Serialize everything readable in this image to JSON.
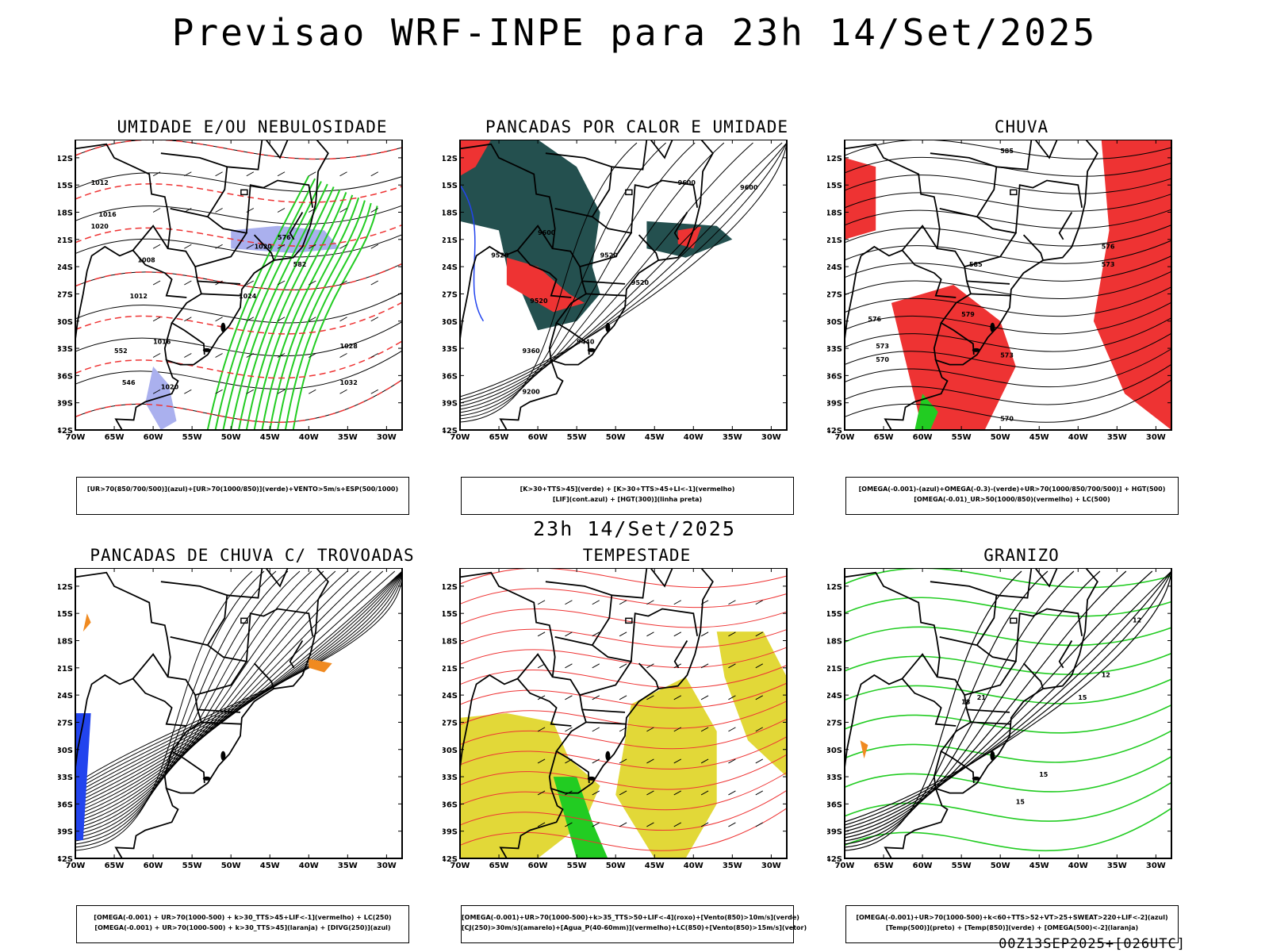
{
  "header": {
    "main_title": "Previsao WRF-INPE  para 23h 14/Set/2025",
    "mid_title": "23h 14/Set/2025",
    "footer": "00Z13SEP2025+[026UTC]"
  },
  "axes": {
    "lat_labels": [
      "12S",
      "15S",
      "18S",
      "21S",
      "24S",
      "27S",
      "30S",
      "33S",
      "36S",
      "39S",
      "42S"
    ],
    "lon_labels": [
      "70W",
      "65W",
      "60W",
      "55W",
      "50W",
      "45W",
      "40W",
      "35W",
      "30W"
    ]
  },
  "colors": {
    "green": "#22cc22",
    "red": "#ee3333",
    "blue": "#2244ee",
    "lavender": "#aab0ee",
    "darkteal": "#24504f",
    "yellow": "#e2d838",
    "orange": "#f08a20",
    "black": "#000000"
  },
  "panels": [
    {
      "id": "umidade",
      "title": "UMIDADE E/OU NEBULOSIDADE",
      "legend": [
        "[UR>70(850/700/500)](azul)+[UR>70(1000/850)](verde)+VENTO>5m/s+ESP(500/1000)"
      ],
      "contour_labels": [
        "1012",
        "1020",
        "1016",
        "1008",
        "1012",
        "1016",
        "1024",
        "1020",
        "1028",
        "1032",
        "1020",
        "576",
        "552",
        "546",
        "582"
      ]
    },
    {
      "id": "pancadas_calor",
      "title": "PANCADAS POR CALOR E UMIDADE",
      "legend": [
        "[K>30+TTS>45](verde) + [K>30+TTS>45+LI<-1](vermelho)",
        "[LIF](cont.azul) + [HGT(300)](linha preta)"
      ],
      "contour_labels": [
        "9600",
        "9600",
        "9520",
        "9600",
        "9520",
        "9520",
        "9520",
        "9440",
        "9360",
        "9200"
      ]
    },
    {
      "id": "chuva",
      "title": "CHUVA",
      "legend": [
        "[OMEGA(-0.001)-(azul)+OMEGA(-0.3)-(verde)+UR>70(1000/850/700/500)] + HGT(500)",
        "[OMEGA(-0.01)_UR>50(1000/850)(vermelho) + LC(500)"
      ],
      "contour_labels": [
        "585",
        "585",
        "576",
        "573",
        "579",
        "576",
        "573",
        "570",
        "573",
        "570"
      ]
    },
    {
      "id": "pancadas_trovoadas",
      "title": "PANCADAS DE CHUVA C/ TROVOADAS",
      "legend": [
        "[OMEGA(-0.001) + UR>70(1000-500) + k>30_TTS>45+LIF<-1](vermelho) + LC(250)",
        "[OMEGA(-0.001) + UR>70(1000-500) + k>30_TTS>45](laranja) + [DIVG(250)](azul)"
      ]
    },
    {
      "id": "tempestade",
      "title": "TEMPESTADE",
      "legend": [
        "[OMEGA(-0.001)+UR>70(1000-500)+k>35_TTS>50+LIF<-4](roxo)+[Vento(850)>10m/s](verde)",
        "[CJ(250)>30m/s](amarelo)+[Agua_P(40-60mm)](vermelho)+LC(850)+[Vento(850)>15m/s](vetor)"
      ]
    },
    {
      "id": "granizo",
      "title": "GRANIZO",
      "legend": [
        "[OMEGA(-0.001)+UR>70(1000-500)+k<60+TTS>52+VT>25+SWEAT>220+LIF<-2](azul)",
        "[Temp(500)](preto) + [Temp(850)](verde) + [OMEGA(500)<-2](laranja)"
      ],
      "contour_labels": [
        "12",
        "12",
        "15",
        "18",
        "21",
        "15",
        "15"
      ]
    }
  ]
}
